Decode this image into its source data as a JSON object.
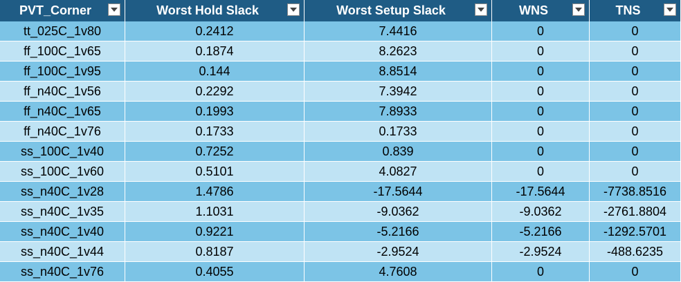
{
  "columns": [
    "PVT_Corner",
    "Worst Hold Slack",
    "Worst Setup Slack",
    "WNS",
    "TNS"
  ],
  "rows": [
    [
      "tt_025C_1v80",
      "0.2412",
      "7.4416",
      "0",
      "0"
    ],
    [
      "ff_100C_1v65",
      "0.1874",
      "8.2623",
      "0",
      "0"
    ],
    [
      "ff_100C_1v95",
      "0.144",
      "8.8514",
      "0",
      "0"
    ],
    [
      "ff_n40C_1v56",
      "0.2292",
      "7.3942",
      "0",
      "0"
    ],
    [
      "ff_n40C_1v65",
      "0.1993",
      "7.8933",
      "0",
      "0"
    ],
    [
      "ff_n40C_1v76",
      "0.1733",
      "0.1733",
      "0",
      "0"
    ],
    [
      "ss_100C_1v40",
      "0.7252",
      "0.839",
      "0",
      "0"
    ],
    [
      "ss_100C_1v60",
      "0.5101",
      "4.0827",
      "0",
      "0"
    ],
    [
      "ss_n40C_1v28",
      "1.4786",
      "-17.5644",
      "-17.5644",
      "-7738.8516"
    ],
    [
      "ss_n40C_1v35",
      "1.1031",
      "-9.0362",
      "-9.0362",
      "-2761.8804"
    ],
    [
      "ss_n40C_1v40",
      "0.9221",
      "-5.2166",
      "-5.2166",
      "-1292.5701"
    ],
    [
      "ss_n40C_1v44",
      "0.8187",
      "-2.9524",
      "-2.9524",
      "-488.6235"
    ],
    [
      "ss_n40C_1v76",
      "0.4055",
      "4.7608",
      "0",
      "0"
    ]
  ],
  "colors": {
    "header_bg": "#1f5c85",
    "row_dark": "#7cc4e6",
    "row_light": "#bfe3f4"
  },
  "icons": {
    "filter": "filter-dropdown-icon"
  }
}
